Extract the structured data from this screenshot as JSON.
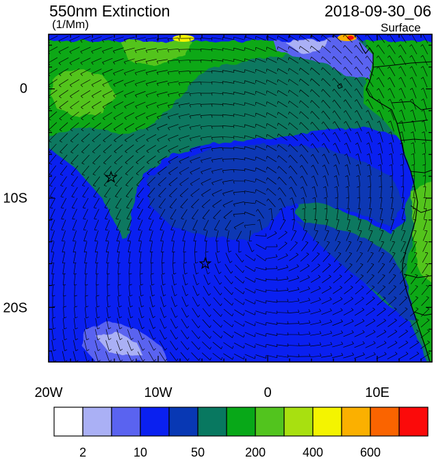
{
  "header": {
    "title": "550nm Extinction",
    "units": "(1/Mm)",
    "datetime": "2018-09-30_06",
    "level": "Surface"
  },
  "axes": {
    "lon_labels": [
      "20W",
      "10W",
      "0",
      "10E"
    ],
    "lat_labels": [
      "0",
      "10S",
      "20S"
    ]
  },
  "colorbar": {
    "colors": [
      "#ffffff",
      "#aab0f5",
      "#5a63f0",
      "#0a20f0",
      "#0838b4",
      "#087860",
      "#08a818",
      "#52c41e",
      "#a8e010",
      "#f4f400",
      "#fbb000",
      "#fa6400",
      "#fb0a0a"
    ],
    "labels": [
      {
        "text": "2",
        "after_box": 1
      },
      {
        "text": "10",
        "after_box": 3
      },
      {
        "text": "50",
        "after_box": 5
      },
      {
        "text": "200",
        "after_box": 7
      },
      {
        "text": "400",
        "after_box": 9
      },
      {
        "text": "600",
        "after_box": 11
      }
    ]
  },
  "field_colors": {
    "ocean_low": "#0a20f0",
    "ocean_mid": "#0838b4",
    "plume": "#087860",
    "green": "#08a818",
    "light_green": "#52c41e",
    "pale": "#aab0f5",
    "lavender": "#5a63f0",
    "yellow": "#f4f400",
    "orange": "#fbb000",
    "red": "#fb0a0a"
  },
  "markers": [
    {
      "name": "station-star-1",
      "lon": -14.3,
      "lat": -8.1
    },
    {
      "name": "station-star-2",
      "lon": -5.7,
      "lat": -16.0
    }
  ]
}
